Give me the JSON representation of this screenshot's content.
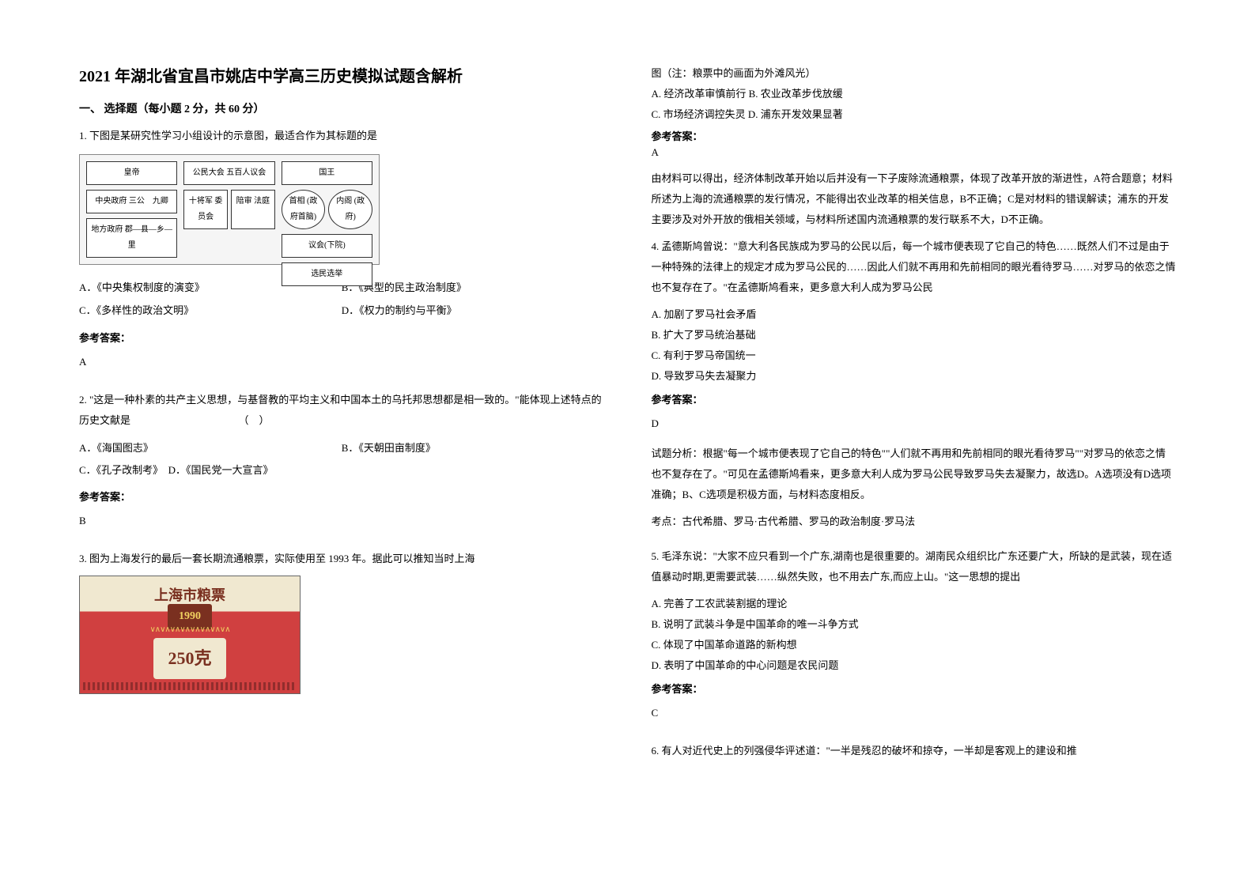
{
  "title": "2021 年湖北省宜昌市姚店中学高三历史模拟试题含解析",
  "section1": "一、 选择题（每小题 2 分，共 60 分）",
  "q1": {
    "text": "1. 下图是某研究性学习小组设计的示意图，最适合作为其标题的是",
    "diagram": {
      "cell1": "皇帝",
      "cell2": "中央政府\n三公　九卿",
      "cell3": "地方政府\n郡—县—乡—里",
      "cell4": "公民大会\n五百人议会",
      "cell5": "十将军\n委员会",
      "cell6": "陪审\n法庭",
      "cell7": "国王",
      "cell8": "首相\n(政府首脑)",
      "cell9": "内阁\n(政府)",
      "cell10": "议会(下院)",
      "cell11": "选民选举"
    },
    "optA": "A．《中央集权制度的演变》",
    "optB": "B．《典型的民主政治制度》",
    "optC": "C．《多样性的政治文明》",
    "optD": "D．《权力的制约与平衡》",
    "answerLabel": "参考答案：",
    "answer": "A"
  },
  "q2": {
    "text": "2. \"这是一种朴素的共产主义思想，与基督教的平均主义和中国本土的乌托邦思想都是相一致的。\"能体现上述特点的历史文献是　　　　　　　　　　　（　）",
    "optA": "A．《海国图志》",
    "optB": "B．《天朝田亩制度》",
    "optC": "C．《孔子改制考》　D．《国民党一大宣言》",
    "answerLabel": "参考答案：",
    "answer": "B"
  },
  "q3": {
    "text": "3. 图为上海发行的最后一套长期流通粮票，实际使用至 1993 年。据此可以推知当时上海",
    "ticket": {
      "title": "上海市粮票",
      "year": "1990",
      "weight": "250克"
    },
    "note": "图（注：粮票中的画面为外滩风光）",
    "optA": "A. 经济改革审慎前行 B. 农业改革步伐放缓",
    "optC": "C. 市场经济调控失灵 D. 浦东开发效果显著",
    "answerLabel": "参考答案：",
    "answer": "A",
    "explanation": "由材料可以得出，经济体制改革开始以后并没有一下子废除流通粮票，体现了改革开放的渐进性，A符合题意；材料所述为上海的流通粮票的发行情况，不能得出农业改革的相关信息，B不正确；C是对材料的错误解读；浦东的开发主要涉及对外开放的俄相关领域，与材料所述国内流通粮票的发行联系不大，D不正确。"
  },
  "q4": {
    "text": "4. 孟德斯鸠曾说：\"意大利各民族成为罗马的公民以后，每一个城市便表现了它自己的特色……既然人们不过是由于一种特殊的法律上的规定才成为罗马公民的……因此人们就不再用和先前相同的眼光看待罗马……对罗马的依恋之情也不复存在了。\"在孟德斯鸠看来，更多意大利人成为罗马公民",
    "optA": "A. 加剧了罗马社会矛盾",
    "optB": "B. 扩大了罗马统治基础",
    "optC": "C. 有利于罗马帝国统一",
    "optD": "D. 导致罗马失去凝聚力",
    "answerLabel": "参考答案：",
    "answer": "D",
    "explanation": "试题分析：根据\"每一个城市便表现了它自己的特色\"\"人们就不再用和先前相同的眼光看待罗马\"\"对罗马的依恋之情也不复存在了。\"可见在孟德斯鸠看来，更多意大利人成为罗马公民导致罗马失去凝聚力，故选D。A选项没有D选项准确；B、C选项是积极方面，与材料态度相反。",
    "topic": "考点：古代希腊、罗马·古代希腊、罗马的政治制度·罗马法"
  },
  "q5": {
    "text": "5. 毛泽东说：\"大家不应只看到一个广东,湖南也是很重要的。湖南民众组织比广东还要广大，所缺的是武装，现在适值暴动时期,更需要武装……纵然失败，也不用去广东,而应上山。\"这一思想的提出",
    "optA": "A. 完善了工农武装割据的理论",
    "optB": "B. 说明了武装斗争是中国革命的唯一斗争方式",
    "optC": "C. 体现了中国革命道路的新构想",
    "optD": "D. 表明了中国革命的中心问题是农民问题",
    "answerLabel": "参考答案：",
    "answer": "C"
  },
  "q6": {
    "text": "6. 有人对近代史上的列强侵华评述道：\"一半是残忍的破坏和掠夺，一半却是客观上的建设和推"
  }
}
